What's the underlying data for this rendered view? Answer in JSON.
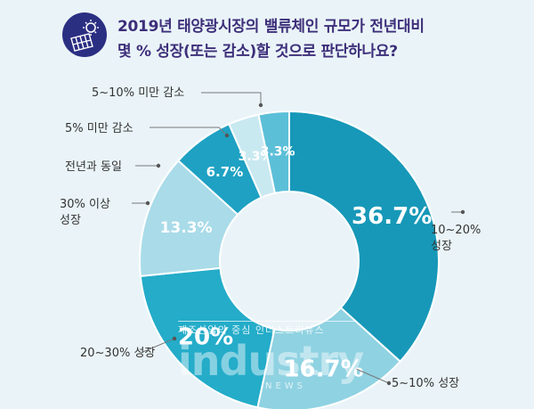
{
  "title": {
    "line1": "2019년 태양광시장의 밸류체인 규모가 전년대비",
    "line2": "몇 % 성장(또는 감소)할 것으로 판단하나요?"
  },
  "icon": {
    "name": "solar-panel-icon",
    "color": "#2b2f82"
  },
  "watermark": {
    "subtitle": "제조산업의 중심 인더스트리뉴스",
    "logo": "industry",
    "news": "NEWS"
  },
  "chart_data": {
    "type": "donut",
    "unit": "%",
    "slices": [
      {
        "label": "10~20% 성장",
        "value": 36.7,
        "value_label": "36.7%",
        "color": "#1798b8"
      },
      {
        "label": "5~10% 성장",
        "value": 16.7,
        "value_label": "16.7%",
        "color": "#8fd2e2"
      },
      {
        "label": "20~30% 성장",
        "value": 20,
        "value_label": "20%",
        "color": "#24acc9"
      },
      {
        "label": "30% 이상 성장",
        "value": 13.3,
        "value_label": "13.3%",
        "color": "#a9dbe8"
      },
      {
        "label": "전년과 동일",
        "value": 6.7,
        "value_label": "6.7%",
        "color": "#1ea1c3"
      },
      {
        "label": "5% 미만 감소",
        "value": 3.3,
        "value_label": "3.3%",
        "color": "#c9e9f1"
      },
      {
        "label": "5~10% 미만 감소",
        "value": 3.3,
        "value_label": "3.3%",
        "color": "#5cbfd8"
      }
    ]
  }
}
